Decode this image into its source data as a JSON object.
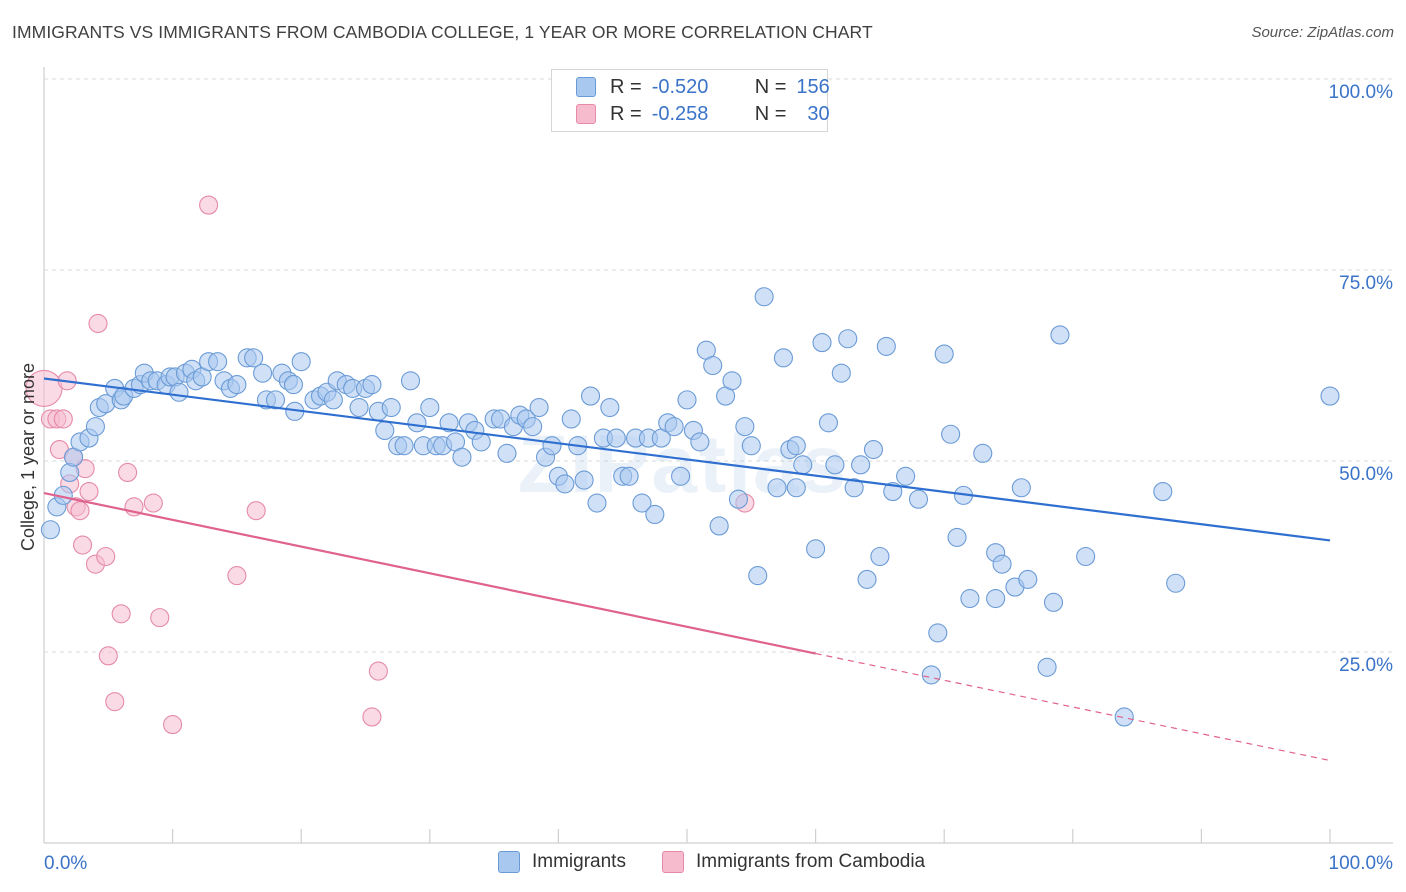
{
  "header": {
    "title": "IMMIGRANTS VS IMMIGRANTS FROM CAMBODIA COLLEGE, 1 YEAR OR MORE CORRELATION CHART",
    "source": "Source: ZipAtlas.com"
  },
  "legend": {
    "rows": [
      {
        "r_label": "R =",
        "r_value": "-0.520",
        "n_label": "N =",
        "n_value": "156"
      },
      {
        "r_label": "R =",
        "r_value": "-0.258",
        "n_label": "N =",
        "n_value": "30"
      }
    ]
  },
  "colors": {
    "blue_fill": "#a9c8f0",
    "blue_stroke": "#6b9bd6",
    "blue_line": "#2f6fd0",
    "pink_fill": "#f6bccd",
    "pink_stroke": "#e58aa8",
    "pink_line": "#e0628e",
    "grid": "#d9d9d9",
    "axis_label": "#3a73c8"
  },
  "chart_data": {
    "type": "scatter",
    "title": "IMMIGRANTS VS IMMIGRANTS FROM CAMBODIA COLLEGE, 1 YEAR OR MORE CORRELATION CHART",
    "xlabel": "",
    "ylabel": "College, 1 year or more",
    "xlim": [
      0,
      100
    ],
    "ylim": [
      0,
      100
    ],
    "x_tick_labels": [
      "0.0%",
      "100.0%"
    ],
    "y_tick_labels": [
      "25.0%",
      "50.0%",
      "75.0%",
      "100.0%"
    ],
    "y_ticks": [
      25,
      50,
      75,
      100
    ],
    "x_minor_ticks": [
      10,
      20,
      30,
      40,
      50,
      60,
      70,
      80,
      90,
      100
    ],
    "grid": true,
    "watermark": "ZIPatlas",
    "series": [
      {
        "name": "Immigrants",
        "color": "#a9c8f0",
        "trendline": {
          "x": [
            0,
            100
          ],
          "y": [
            60.8,
            39.6
          ],
          "dashed_from": null
        },
        "points": [
          [
            0.5,
            41
          ],
          [
            1,
            44
          ],
          [
            1.5,
            45.5
          ],
          [
            2,
            48.5
          ],
          [
            2.3,
            50.5
          ],
          [
            2.8,
            52.5
          ],
          [
            3.5,
            53
          ],
          [
            4,
            54.5
          ],
          [
            4.3,
            57
          ],
          [
            4.8,
            57.5
          ],
          [
            5.5,
            59.5
          ],
          [
            6,
            58
          ],
          [
            6.2,
            58.5
          ],
          [
            7,
            59.5
          ],
          [
            7.5,
            60
          ],
          [
            7.8,
            61.5
          ],
          [
            8.3,
            60.5
          ],
          [
            8.8,
            60.5
          ],
          [
            9.5,
            60
          ],
          [
            9.8,
            61
          ],
          [
            10.2,
            61
          ],
          [
            10.5,
            59
          ],
          [
            11,
            61.5
          ],
          [
            11.5,
            62
          ],
          [
            11.8,
            60.5
          ],
          [
            12.3,
            61
          ],
          [
            12.8,
            63
          ],
          [
            13.5,
            63
          ],
          [
            14,
            60.5
          ],
          [
            14.5,
            59.5
          ],
          [
            15,
            60
          ],
          [
            15.8,
            63.5
          ],
          [
            16.3,
            63.5
          ],
          [
            17,
            61.5
          ],
          [
            17.3,
            58
          ],
          [
            18,
            58
          ],
          [
            18.5,
            61.5
          ],
          [
            19,
            60.5
          ],
          [
            19.4,
            60
          ],
          [
            19.5,
            56.5
          ],
          [
            20,
            63
          ],
          [
            21,
            58
          ],
          [
            21.5,
            58.5
          ],
          [
            22,
            59
          ],
          [
            22.5,
            58
          ],
          [
            22.8,
            60.5
          ],
          [
            23.5,
            60
          ],
          [
            24,
            59.5
          ],
          [
            24.5,
            57
          ],
          [
            25,
            59.5
          ],
          [
            25.5,
            60
          ],
          [
            26,
            56.5
          ],
          [
            26.5,
            54
          ],
          [
            27,
            57
          ],
          [
            27.5,
            52
          ],
          [
            28,
            52
          ],
          [
            28.5,
            60.5
          ],
          [
            29,
            55
          ],
          [
            29.5,
            52
          ],
          [
            30,
            57
          ],
          [
            30.5,
            52
          ],
          [
            31,
            52
          ],
          [
            31.5,
            55
          ],
          [
            32,
            52.5
          ],
          [
            32.5,
            50.5
          ],
          [
            33,
            55
          ],
          [
            33.5,
            54
          ],
          [
            34,
            52.5
          ],
          [
            35,
            55.5
          ],
          [
            35.5,
            55.5
          ],
          [
            36,
            51
          ],
          [
            36.5,
            54.5
          ],
          [
            37,
            56
          ],
          [
            37.5,
            55.5
          ],
          [
            38,
            54.5
          ],
          [
            38.5,
            57
          ],
          [
            39,
            50.5
          ],
          [
            39.5,
            52
          ],
          [
            40,
            48
          ],
          [
            40.5,
            47
          ],
          [
            41,
            55.5
          ],
          [
            41.5,
            52
          ],
          [
            42,
            47.5
          ],
          [
            42.5,
            58.5
          ],
          [
            43,
            44.5
          ],
          [
            43.5,
            53
          ],
          [
            44,
            57
          ],
          [
            44.5,
            53
          ],
          [
            45,
            48
          ],
          [
            45.5,
            48
          ],
          [
            46,
            53
          ],
          [
            46.5,
            44.5
          ],
          [
            47,
            53
          ],
          [
            47.5,
            43
          ],
          [
            48,
            53
          ],
          [
            48.5,
            55
          ],
          [
            49,
            54.5
          ],
          [
            49.5,
            48
          ],
          [
            50,
            58
          ],
          [
            50.5,
            54
          ],
          [
            51,
            52.5
          ],
          [
            51.5,
            64.5
          ],
          [
            52,
            62.5
          ],
          [
            52.5,
            41.5
          ],
          [
            53,
            58.5
          ],
          [
            53.5,
            60.5
          ],
          [
            54,
            45
          ],
          [
            54.5,
            54.5
          ],
          [
            55,
            52
          ],
          [
            55.5,
            35
          ],
          [
            56,
            71.5
          ],
          [
            57,
            46.5
          ],
          [
            57.5,
            63.5
          ],
          [
            58,
            51.5
          ],
          [
            58.5,
            52
          ],
          [
            58.5,
            46.5
          ],
          [
            59,
            49.5
          ],
          [
            60,
            38.5
          ],
          [
            60.5,
            65.5
          ],
          [
            61,
            55
          ],
          [
            61.5,
            49.5
          ],
          [
            62,
            61.5
          ],
          [
            62.5,
            66
          ],
          [
            63,
            46.5
          ],
          [
            63.5,
            49.5
          ],
          [
            64,
            34.5
          ],
          [
            64.5,
            51.5
          ],
          [
            65,
            37.5
          ],
          [
            65.5,
            65
          ],
          [
            66,
            46
          ],
          [
            67,
            48
          ],
          [
            68,
            45
          ],
          [
            69,
            22
          ],
          [
            69.5,
            27.5
          ],
          [
            70,
            64
          ],
          [
            70.5,
            53.5
          ],
          [
            71,
            40
          ],
          [
            71.5,
            45.5
          ],
          [
            72,
            32
          ],
          [
            73,
            51
          ],
          [
            74,
            32
          ],
          [
            74,
            38
          ],
          [
            74.5,
            36.5
          ],
          [
            75.5,
            33.5
          ],
          [
            76,
            46.5
          ],
          [
            76.5,
            34.5
          ],
          [
            78,
            23
          ],
          [
            78.5,
            31.5
          ],
          [
            79,
            66.5
          ],
          [
            81,
            37.5
          ],
          [
            84,
            16.5
          ],
          [
            87,
            46
          ],
          [
            88,
            34
          ],
          [
            100,
            58.5
          ]
        ]
      },
      {
        "name": "Immigrants from Cambodia",
        "color": "#f6bccd",
        "trendline": {
          "x": [
            0,
            100
          ],
          "y": [
            45.8,
            10.8
          ],
          "dashed_from": 60
        },
        "points": [
          [
            0,
            59.5
          ],
          [
            0.5,
            55.5
          ],
          [
            1,
            55.5
          ],
          [
            1.2,
            51.5
          ],
          [
            1.5,
            55.5
          ],
          [
            1.8,
            60.5
          ],
          [
            2,
            47
          ],
          [
            2.3,
            50.5
          ],
          [
            2.5,
            44
          ],
          [
            2.8,
            43.5
          ],
          [
            3,
            39
          ],
          [
            3.2,
            49
          ],
          [
            3.5,
            46
          ],
          [
            4,
            36.5
          ],
          [
            4.2,
            68
          ],
          [
            4.8,
            37.5
          ],
          [
            5,
            24.5
          ],
          [
            5.5,
            18.5
          ],
          [
            6,
            30
          ],
          [
            6.5,
            48.5
          ],
          [
            7,
            44
          ],
          [
            8.5,
            44.5
          ],
          [
            9,
            29.5
          ],
          [
            10,
            15.5
          ],
          [
            12.8,
            83.5
          ],
          [
            15,
            35
          ],
          [
            16.5,
            43.5
          ],
          [
            25.5,
            16.5
          ],
          [
            26,
            22.5
          ],
          [
            54.5,
            44.5
          ]
        ]
      }
    ]
  },
  "bottom_legend": {
    "items": [
      {
        "label": "Immigrants"
      },
      {
        "label": "Immigrants from Cambodia"
      }
    ]
  }
}
